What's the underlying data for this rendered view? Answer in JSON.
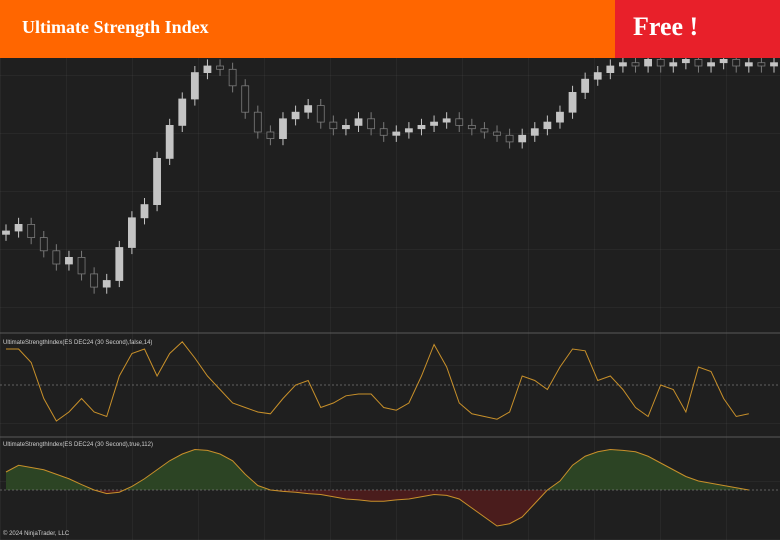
{
  "header": {
    "title": "Ultimate Strength Index",
    "badge": "Free !"
  },
  "footer": "© 2024 NinjaTrader, LLC",
  "chart_data": [
    {
      "type": "candlestick",
      "ylim": [
        0,
        100
      ],
      "up_color": "#c4c4c4",
      "down_color": "#7a7a7a",
      "open": [
        29,
        30,
        32,
        28,
        24,
        20,
        22,
        17,
        13,
        15,
        25,
        34,
        38,
        52,
        62,
        70,
        78,
        80,
        79,
        74,
        66,
        60,
        58,
        64,
        66,
        68,
        63,
        61,
        62,
        64,
        61,
        59,
        60,
        61,
        62,
        63,
        64,
        62,
        61,
        60,
        59,
        57,
        59,
        61,
        63,
        66,
        72,
        76,
        78,
        80,
        81,
        80,
        82,
        80,
        81,
        82,
        80,
        81,
        82,
        80,
        81,
        80
      ],
      "high": [
        32,
        34,
        34,
        30,
        26,
        24,
        24,
        19,
        17,
        27,
        36,
        40,
        54,
        64,
        72,
        80,
        82,
        82,
        81,
        76,
        68,
        62,
        66,
        68,
        70,
        70,
        65,
        64,
        66,
        66,
        63,
        62,
        63,
        64,
        65,
        66,
        66,
        64,
        63,
        62,
        61,
        61,
        63,
        65,
        68,
        74,
        78,
        80,
        82,
        83,
        83,
        84,
        84,
        83,
        84,
        84,
        83,
        84,
        84,
        83,
        83,
        83
      ],
      "low": [
        27,
        28,
        26,
        22,
        18,
        18,
        15,
        11,
        11,
        13,
        23,
        32,
        36,
        50,
        60,
        68,
        76,
        77,
        72,
        64,
        58,
        56,
        56,
        62,
        64,
        61,
        59,
        59,
        60,
        59,
        57,
        57,
        58,
        59,
        60,
        61,
        60,
        59,
        58,
        57,
        55,
        55,
        57,
        59,
        61,
        64,
        70,
        74,
        76,
        78,
        78,
        78,
        78,
        78,
        79,
        78,
        78,
        79,
        78,
        78,
        78,
        78
      ],
      "close": [
        30,
        32,
        28,
        24,
        20,
        22,
        17,
        13,
        15,
        25,
        34,
        38,
        52,
        62,
        70,
        78,
        80,
        79,
        74,
        66,
        60,
        58,
        64,
        66,
        68,
        63,
        61,
        62,
        64,
        61,
        59,
        60,
        61,
        62,
        63,
        64,
        62,
        61,
        60,
        59,
        57,
        59,
        61,
        63,
        66,
        72,
        76,
        78,
        80,
        81,
        80,
        82,
        80,
        81,
        82,
        80,
        81,
        82,
        80,
        81,
        80,
        81
      ]
    },
    {
      "type": "line",
      "title": "UltimateStrengthIndex(ES DEC24 (30 Second),false,14)",
      "ylim": [
        0,
        100
      ],
      "reference_line": 50,
      "color": "#c8902a",
      "values": [
        90,
        90,
        75,
        35,
        10,
        20,
        35,
        20,
        15,
        60,
        85,
        90,
        60,
        85,
        98,
        80,
        60,
        45,
        30,
        25,
        20,
        18,
        35,
        50,
        55,
        25,
        30,
        38,
        40,
        40,
        25,
        22,
        30,
        60,
        95,
        70,
        30,
        18,
        15,
        12,
        20,
        60,
        55,
        45,
        70,
        90,
        88,
        55,
        60,
        45,
        25,
        15,
        50,
        45,
        20,
        70,
        65,
        35,
        15,
        18,
        null,
        null
      ]
    },
    {
      "type": "area",
      "title": "UltimateStrengthIndex(ES DEC24 (30 Second),true,112)",
      "ylim": [
        -100,
        100
      ],
      "reference_line": 0,
      "color": "#c8902a",
      "positive_color": "#2c4424",
      "negative_color": "#4a1c1c",
      "values": [
        40,
        55,
        50,
        45,
        35,
        25,
        12,
        0,
        -8,
        -5,
        8,
        25,
        45,
        65,
        80,
        90,
        88,
        80,
        65,
        35,
        10,
        0,
        -3,
        -5,
        -8,
        -10,
        -15,
        -20,
        -22,
        -25,
        -25,
        -22,
        -20,
        -15,
        -10,
        -12,
        -20,
        -40,
        -60,
        -80,
        -75,
        -60,
        -30,
        0,
        20,
        55,
        75,
        85,
        90,
        88,
        85,
        75,
        60,
        45,
        30,
        20,
        15,
        10,
        5,
        0,
        null,
        null
      ]
    }
  ]
}
